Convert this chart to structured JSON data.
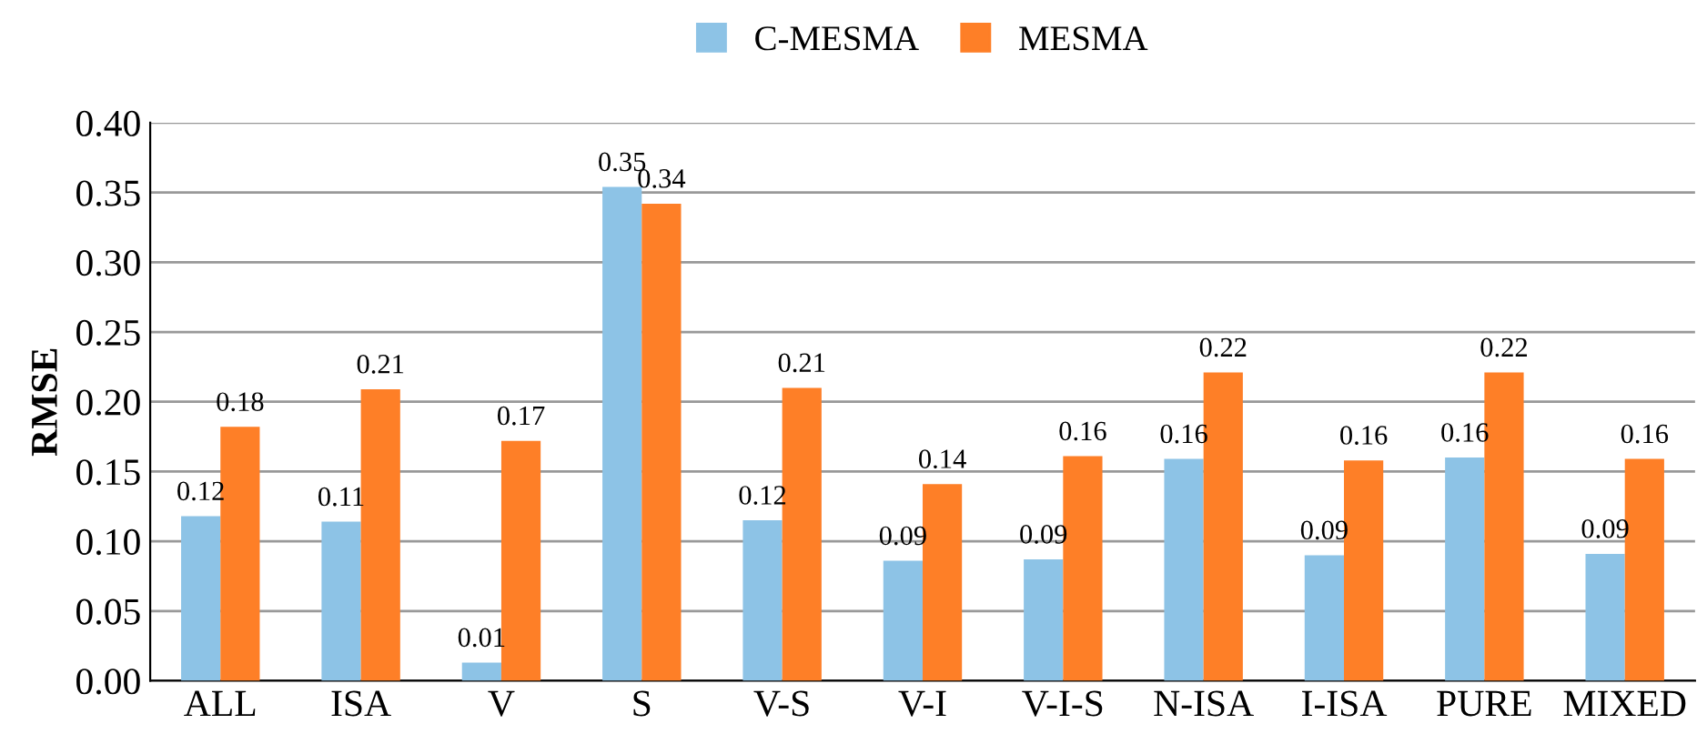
{
  "chart_data": {
    "type": "bar",
    "ylabel": "RMSE",
    "categories": [
      "ALL",
      "ISA",
      "V",
      "S",
      "V-S",
      "V-I",
      "V-I-S",
      "N-ISA",
      "I-ISA",
      "PURE",
      "MIXED"
    ],
    "series": [
      {
        "name": "C-MESMA",
        "color": "#8dc3e6",
        "values": [
          0.118,
          0.114,
          0.013,
          0.354,
          0.115,
          0.086,
          0.087,
          0.159,
          0.09,
          0.16,
          0.091
        ],
        "value_labels": [
          "0.12",
          "0.11",
          "0.01",
          "0.35",
          "0.12",
          "0.09",
          "0.09",
          "0.16",
          "0.09",
          "0.16",
          "0.09"
        ]
      },
      {
        "name": "MESMA",
        "color": "#fe7f27",
        "values": [
          0.182,
          0.209,
          0.172,
          0.342,
          0.21,
          0.141,
          0.161,
          0.221,
          0.158,
          0.221,
          0.159
        ],
        "value_labels": [
          "0.18",
          "0.21",
          "0.17",
          "0.34",
          "0.21",
          "0.14",
          "0.16",
          "0.22",
          "0.16",
          "0.22",
          "0.16"
        ]
      }
    ],
    "ylim": [
      0,
      0.4
    ],
    "yticks": [
      {
        "value": 0,
        "label": "0.00"
      },
      {
        "value": 0.05,
        "label": "0.05"
      },
      {
        "value": 0.1,
        "label": "0.10"
      },
      {
        "value": 0.15,
        "label": "0.15"
      },
      {
        "value": 0.2,
        "label": "0.20"
      },
      {
        "value": 0.25,
        "label": "0.25"
      },
      {
        "value": 0.3,
        "label": "0.30"
      },
      {
        "value": 0.35,
        "label": "0.35"
      },
      {
        "value": 0.4,
        "label": "0.40"
      }
    ],
    "grid": "y",
    "legend": "top"
  }
}
